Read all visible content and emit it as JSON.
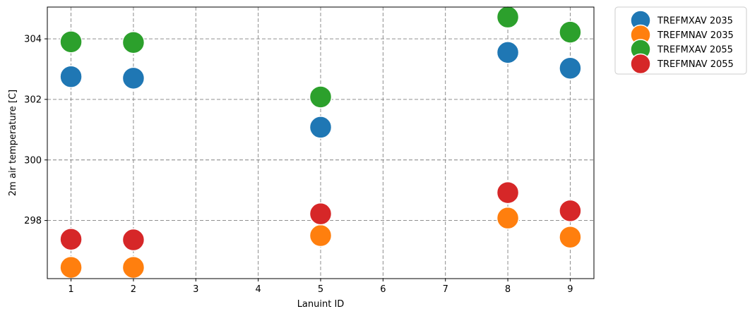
{
  "chart_data": {
    "type": "scatter",
    "xlabel": "Lanuint ID",
    "ylabel": "2m air temperature [C]",
    "xlim": [
      0.62,
      9.38
    ],
    "ylim": [
      296.08,
      305.05
    ],
    "xticks": [
      1,
      2,
      3,
      4,
      5,
      6,
      7,
      8,
      9
    ],
    "yticks": [
      298,
      300,
      302,
      304
    ],
    "grid": true,
    "legend_position": "outside-top-right",
    "series": [
      {
        "name": "TREFMXAV 2035",
        "color": "#1f77b4",
        "x": [
          1,
          2,
          5,
          8,
          9
        ],
        "y": [
          302.75,
          302.7,
          301.08,
          303.55,
          303.03
        ]
      },
      {
        "name": "TREFMNAV 2035",
        "color": "#ff7f0e",
        "x": [
          1,
          2,
          5,
          8,
          9
        ],
        "y": [
          296.45,
          296.45,
          297.5,
          298.08,
          297.45
        ]
      },
      {
        "name": "TREFMXAV 2055",
        "color": "#2ca02c",
        "x": [
          1,
          2,
          5,
          8,
          9
        ],
        "y": [
          303.9,
          303.88,
          302.08,
          304.72,
          304.22
        ]
      },
      {
        "name": "TREFMNAV 2055",
        "color": "#d62728",
        "x": [
          1,
          2,
          5,
          8,
          9
        ],
        "y": [
          297.38,
          297.36,
          298.22,
          298.92,
          298.32
        ]
      }
    ]
  }
}
